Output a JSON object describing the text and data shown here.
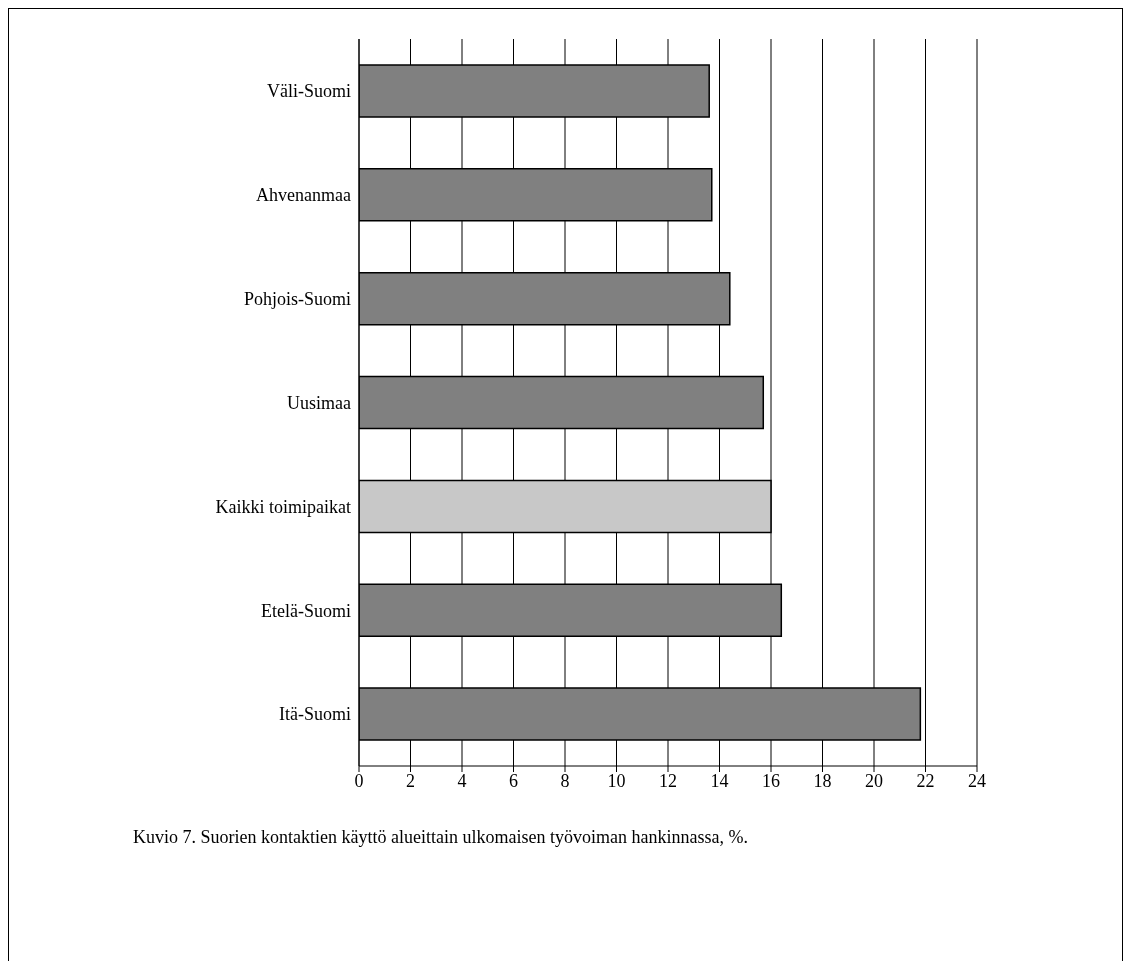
{
  "chart_data": {
    "type": "bar",
    "orientation": "horizontal",
    "categories": [
      "Väli-Suomi",
      "Ahvenanmaa",
      "Pohjois-Suomi",
      "Uusimaa",
      "Kaikki toimipaikat",
      "Etelä-Suomi",
      "Itä-Suomi"
    ],
    "values": [
      13.6,
      13.7,
      14.4,
      15.7,
      16.0,
      16.4,
      21.8
    ],
    "colors": [
      "#808080",
      "#808080",
      "#808080",
      "#808080",
      "#c8c8c8",
      "#808080",
      "#808080"
    ],
    "xlim": [
      0,
      24
    ],
    "xticks": [
      0,
      2,
      4,
      6,
      8,
      10,
      12,
      14,
      16,
      18,
      20,
      22,
      24
    ],
    "grid": "x",
    "annotations": [
      "Kuvio 7. Suorien kontaktien käyttö alueittain ulkomaisen työvoiman hankinnassa, %."
    ]
  }
}
